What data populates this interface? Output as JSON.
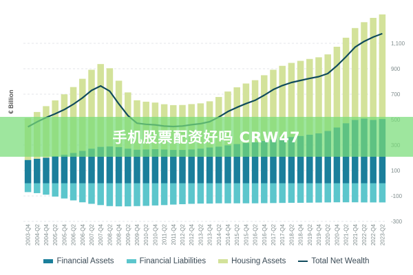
{
  "watermark": "手机股票配资好吗 CRW47",
  "chart_data": {
    "type": "bar",
    "ylabel": "€ Billion",
    "ylim": [
      -300,
      1200
    ],
    "yticks": [
      -300,
      -100,
      100,
      300,
      500,
      700,
      900,
      1100
    ],
    "ytick_labels": [
      "-300",
      "-100",
      "100",
      "300",
      "500",
      "700",
      "900",
      "1,100"
    ],
    "legend_position": "bottom",
    "colors": {
      "financial_assets": "#1b7f9b",
      "financial_liabilities": "#5cc6cc",
      "housing_assets": "#d3e29a",
      "total_net_wealth": "#0f4a5c"
    },
    "categories": [
      "2003-Q4",
      "2004-Q2",
      "2004-Q4",
      "2005-Q2",
      "2005-Q4",
      "2006-Q2",
      "2006-Q4",
      "2007-Q2",
      "2007-Q4",
      "2008-Q2",
      "2008-Q4",
      "2009-Q2",
      "2009-Q4",
      "2010-Q2",
      "2010-Q4",
      "2011-Q2",
      "2011-Q4",
      "2012-Q2",
      "2012-Q4",
      "2013-Q2",
      "2013-Q4",
      "2014-Q2",
      "2014-Q4",
      "2015-Q2",
      "2015-Q4",
      "2016-Q2",
      "2016-Q4",
      "2017-Q2",
      "2017-Q4",
      "2018-Q2",
      "2018-Q4",
      "2019-Q2",
      "2019-Q4",
      "2020-Q2",
      "2020-Q4",
      "2021-Q2",
      "2021-Q4",
      "2022-Q2",
      "2022-Q4",
      "2023-Q2"
    ],
    "series": [
      {
        "name": "Financial Assets",
        "values": [
          183,
          192,
          201,
          213,
          224,
          238,
          255,
          272,
          286,
          289,
          284,
          272,
          264,
          266,
          268,
          265,
          262,
          262,
          266,
          272,
          281,
          288,
          298,
          308,
          316,
          322,
          333,
          344,
          355,
          364,
          372,
          382,
          392,
          411,
          438,
          472,
          498,
          508,
          498,
          505
        ]
      },
      {
        "name": "Financial Liabilities",
        "values": [
          -70,
          -78,
          -90,
          -105,
          -120,
          -135,
          -150,
          -162,
          -172,
          -180,
          -182,
          -182,
          -180,
          -178,
          -175,
          -172,
          -168,
          -165,
          -162,
          -160,
          -160,
          -158,
          -158,
          -158,
          -158,
          -158,
          -157,
          -156,
          -155,
          -154,
          -154,
          -153,
          -152,
          -151,
          -150,
          -150,
          -150,
          -151,
          -151,
          -151
        ]
      },
      {
        "name": "Housing Assets",
        "values": [
          330,
          368,
          405,
          438,
          475,
          518,
          566,
          620,
          651,
          615,
          522,
          442,
          388,
          375,
          366,
          356,
          352,
          353,
          356,
          356,
          363,
          390,
          423,
          446,
          468,
          488,
          516,
          548,
          568,
          582,
          590,
          595,
          598,
          602,
          635,
          672,
          722,
          758,
          802,
          822
        ]
      },
      {
        "name": "Total Net Wealth",
        "values": [
          443,
          482,
          516,
          546,
          579,
          621,
          671,
          730,
          765,
          724,
          624,
          532,
          472,
          463,
          459,
          449,
          446,
          450,
          460,
          468,
          484,
          520,
          563,
          596,
          626,
          652,
          692,
          736,
          768,
          792,
          808,
          824,
          838,
          862,
          923,
          994,
          1070,
          1115,
          1149,
          1176
        ]
      }
    ]
  }
}
